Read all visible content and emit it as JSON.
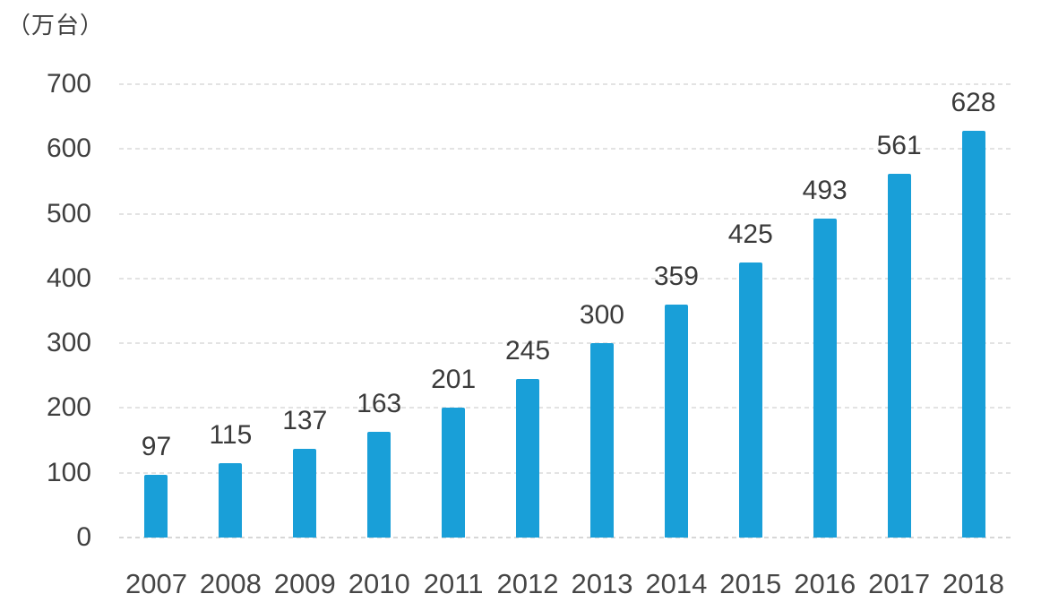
{
  "chart_data": {
    "type": "bar",
    "title": "",
    "unit_label": "（万台）",
    "ylabel": "（万台）",
    "xlabel": "",
    "categories": [
      "2007",
      "2008",
      "2009",
      "2010",
      "2011",
      "2012",
      "2013",
      "2014",
      "2015",
      "2016",
      "2017",
      "2018"
    ],
    "values": [
      97,
      115,
      137,
      163,
      201,
      245,
      300,
      359,
      425,
      493,
      561,
      628
    ],
    "ylim": [
      0,
      700
    ],
    "yticks": [
      0,
      100,
      200,
      300,
      400,
      500,
      600,
      700
    ],
    "grid": "horizontal-dashed",
    "legend_position": "none",
    "bar_color": "#199FD8"
  },
  "colors": {
    "bar": "#199FD8",
    "text": "#3F3F3F",
    "value_text": "#3A3A3A",
    "xlabel_text": "#464646",
    "gridline": "#E3E3E3",
    "baseline": "#D7D7D7",
    "background": "#FFFFFF"
  }
}
